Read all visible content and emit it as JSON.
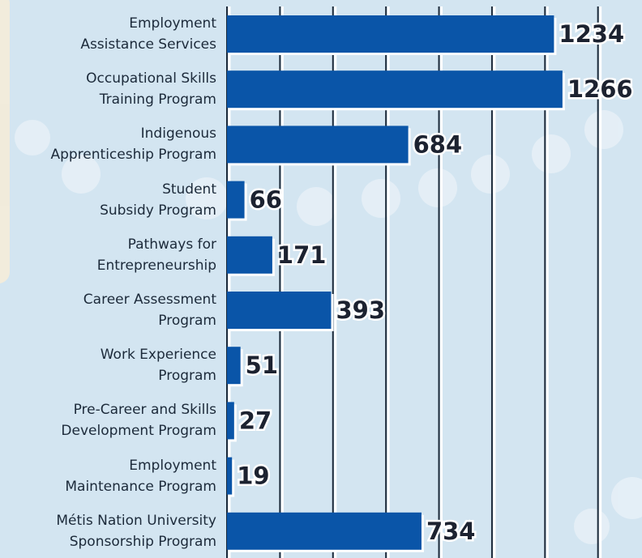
{
  "chart_data": {
    "type": "bar",
    "orientation": "horizontal",
    "categories": [
      "Employment\nAssistance Services",
      "Occupational Skills\nTraining Program",
      "Indigenous\nApprenticeship Program",
      "Student\nSubsidy Program",
      "Pathways for\nEntrepreneurship",
      "Career Assessment\nProgram",
      "Work Experience\nProgram",
      "Pre-Career and Skills\nDevelopment Program",
      "Employment\nMaintenance Program",
      "Métis Nation University\nSponsorship Program"
    ],
    "values": [
      1234,
      1266,
      684,
      66,
      171,
      393,
      51,
      27,
      19,
      734
    ],
    "color": "#0a55a8",
    "xlim": [
      0,
      1560
    ],
    "xticks": [
      0,
      200,
      400,
      600,
      800,
      1000,
      1200,
      1400
    ],
    "grid": true
  }
}
